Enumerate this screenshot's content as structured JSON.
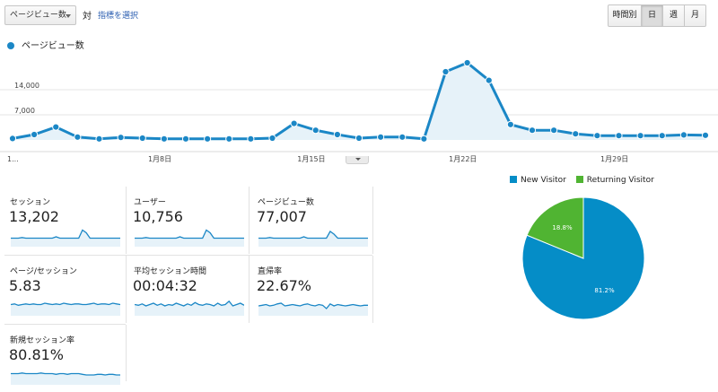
{
  "toolbar": {
    "metric_select": "ページビュー数",
    "vs_label": "対",
    "compare_link": "指標を選択",
    "granularity": [
      "時間別",
      "日",
      "週",
      "月"
    ],
    "granularity_selected": "日"
  },
  "legend": {
    "series_name": "ページビュー数",
    "color": "#1b87c6"
  },
  "chart_data": [
    {
      "type": "area",
      "title": "",
      "series": [
        {
          "name": "ページビュー数",
          "values": [
            400,
            1500,
            3600,
            800,
            300,
            700,
            500,
            300,
            300,
            300,
            300,
            300,
            500,
            4600,
            2700,
            1500,
            500,
            800,
            800,
            300,
            19000,
            21500,
            16600,
            4300,
            2700,
            2700,
            1700,
            1200,
            1200,
            1200,
            1200,
            1400,
            1300
          ]
        }
      ],
      "x_tick_labels": [
        "1...",
        "1月8日",
        "1月15日",
        "1月22日",
        "1月29日"
      ],
      "y_tick_labels": [
        "14,000",
        "7,000"
      ],
      "ylim": [
        0,
        24500
      ],
      "color": "#1b87c6"
    },
    {
      "type": "pie",
      "legend": [
        "New Visitor",
        "Returning Visitor"
      ],
      "values": [
        81.2,
        18.8
      ],
      "labels": [
        "81.2%",
        "18.8%"
      ],
      "colors": [
        "#058dc7",
        "#50b432"
      ]
    }
  ],
  "tiles": [
    {
      "label": "セッション",
      "value": "13,202",
      "spark": [
        10,
        10,
        10,
        11,
        10,
        10,
        10,
        10,
        10,
        10,
        10,
        10,
        12,
        10,
        10,
        10,
        10,
        10,
        10,
        22,
        18,
        10,
        10,
        10,
        10,
        10,
        10,
        10,
        10,
        10
      ]
    },
    {
      "label": "ユーザー",
      "value": "10,756",
      "spark": [
        10,
        10,
        10,
        11,
        10,
        10,
        10,
        10,
        10,
        10,
        10,
        10,
        12,
        10,
        10,
        10,
        10,
        10,
        10,
        22,
        18,
        10,
        10,
        10,
        10,
        10,
        10,
        10,
        10,
        10
      ]
    },
    {
      "label": "ページビュー数",
      "value": "77,007",
      "spark": [
        10,
        10,
        10,
        11,
        10,
        10,
        10,
        10,
        10,
        10,
        10,
        10,
        12,
        10,
        10,
        10,
        10,
        10,
        10,
        20,
        16,
        10,
        10,
        10,
        10,
        10,
        10,
        10,
        10,
        10
      ]
    },
    {
      "label": "ページ/セッション",
      "value": "5.83",
      "spark": [
        14,
        15,
        13,
        14,
        15,
        14,
        15,
        14,
        14,
        16,
        15,
        14,
        15,
        14,
        16,
        15,
        14,
        15,
        15,
        14,
        14,
        15,
        16,
        14,
        15,
        15,
        14,
        16,
        15,
        14
      ]
    },
    {
      "label": "平均セッション時間",
      "value": "00:04:32",
      "spark": [
        14,
        13,
        15,
        12,
        14,
        16,
        13,
        15,
        12,
        14,
        13,
        16,
        14,
        12,
        15,
        13,
        17,
        14,
        13,
        15,
        14,
        12,
        16,
        13,
        14,
        19,
        12,
        14,
        16,
        13
      ]
    },
    {
      "label": "直帰率",
      "value": "22.67%",
      "spark": [
        12,
        13,
        14,
        12,
        13,
        15,
        16,
        12,
        13,
        14,
        13,
        12,
        14,
        15,
        13,
        12,
        14,
        13,
        8,
        15,
        12,
        14,
        13,
        12,
        13,
        14,
        13,
        12,
        13,
        13
      ]
    },
    {
      "label": "新規セッション率",
      "value": "80.81%",
      "spark": [
        14,
        14,
        14,
        15,
        14,
        14,
        14,
        14,
        15,
        14,
        14,
        14,
        13,
        14,
        14,
        13,
        14,
        14,
        14,
        13,
        12,
        12,
        12,
        13,
        13,
        12,
        13,
        13,
        12,
        12
      ]
    }
  ]
}
